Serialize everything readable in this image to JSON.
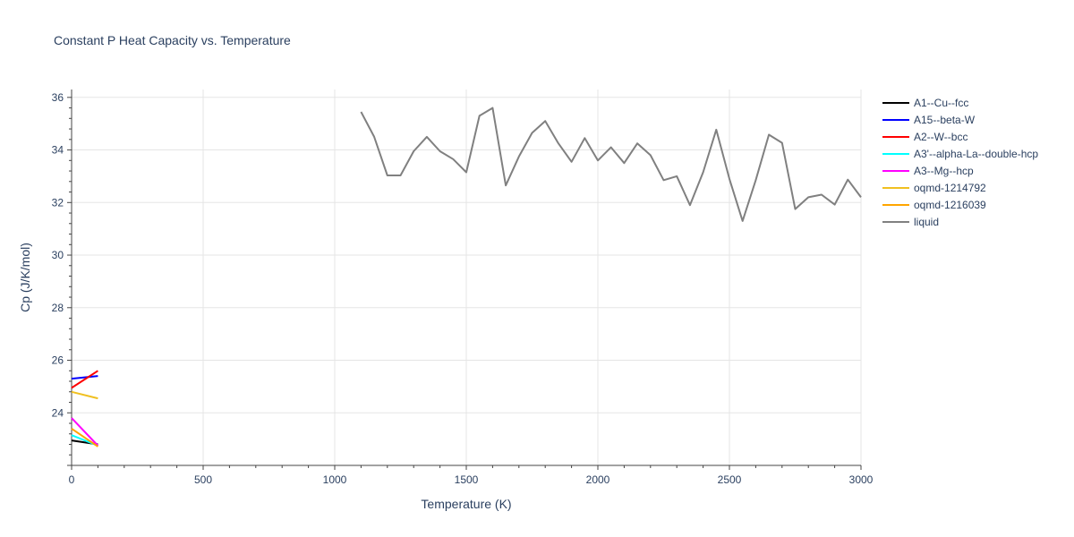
{
  "chart_data": {
    "type": "line",
    "title": "Constant P Heat Capacity vs. Temperature",
    "xlabel": "Temperature (K)",
    "ylabel": "Cp (J/K/mol)",
    "xlim": [
      0,
      3000
    ],
    "ylim": [
      22.0,
      36.3
    ],
    "xticks": [
      0,
      500,
      1000,
      1500,
      2000,
      2500,
      3000
    ],
    "yticks": [
      24,
      26,
      28,
      30,
      32,
      34,
      36
    ],
    "grid": true,
    "legend_position": "right",
    "series": [
      {
        "name": "A1--Cu--fcc",
        "color": "#000000",
        "x": [
          0,
          100
        ],
        "y": [
          22.95,
          22.8
        ]
      },
      {
        "name": "A15--beta-W",
        "color": "#0000ff",
        "x": [
          0,
          100
        ],
        "y": [
          25.3,
          25.4
        ]
      },
      {
        "name": "A2--W--bcc",
        "color": "#ff0000",
        "x": [
          0,
          100
        ],
        "y": [
          24.95,
          25.6
        ]
      },
      {
        "name": "A3'--alpha-La--double-hcp",
        "color": "#00ffff",
        "x": [
          0,
          100
        ],
        "y": [
          23.15,
          22.75
        ]
      },
      {
        "name": "A3--Mg--hcp",
        "color": "#ff00ff",
        "x": [
          0,
          100
        ],
        "y": [
          23.8,
          22.75
        ]
      },
      {
        "name": "oqmd-1214792",
        "color": "#f0c020",
        "x": [
          0,
          100
        ],
        "y": [
          24.8,
          24.55
        ]
      },
      {
        "name": "oqmd-1216039",
        "color": "#ffa500",
        "x": [
          0,
          100
        ],
        "y": [
          23.4,
          22.72
        ]
      },
      {
        "name": "liquid",
        "color": "#808080",
        "x": [
          1100,
          1150,
          1200,
          1250,
          1300,
          1350,
          1400,
          1450,
          1500,
          1550,
          1600,
          1650,
          1700,
          1750,
          1800,
          1850,
          1900,
          1950,
          2000,
          2050,
          2100,
          2150,
          2200,
          2250,
          2300,
          2350,
          2400,
          2450,
          2500,
          2550,
          2600,
          2650,
          2700,
          2750,
          2800,
          2850,
          2900,
          2950,
          3000
        ],
        "y": [
          35.45,
          34.5,
          33.03,
          33.03,
          33.95,
          34.5,
          33.95,
          33.65,
          33.15,
          35.3,
          35.6,
          32.65,
          33.75,
          34.65,
          35.1,
          34.25,
          33.55,
          34.45,
          33.6,
          34.1,
          33.5,
          34.25,
          33.8,
          32.85,
          33.0,
          31.9,
          33.15,
          34.77,
          32.9,
          31.3,
          32.85,
          34.58,
          34.27,
          31.75,
          32.2,
          32.3,
          31.92,
          32.87,
          32.2
        ]
      }
    ]
  }
}
